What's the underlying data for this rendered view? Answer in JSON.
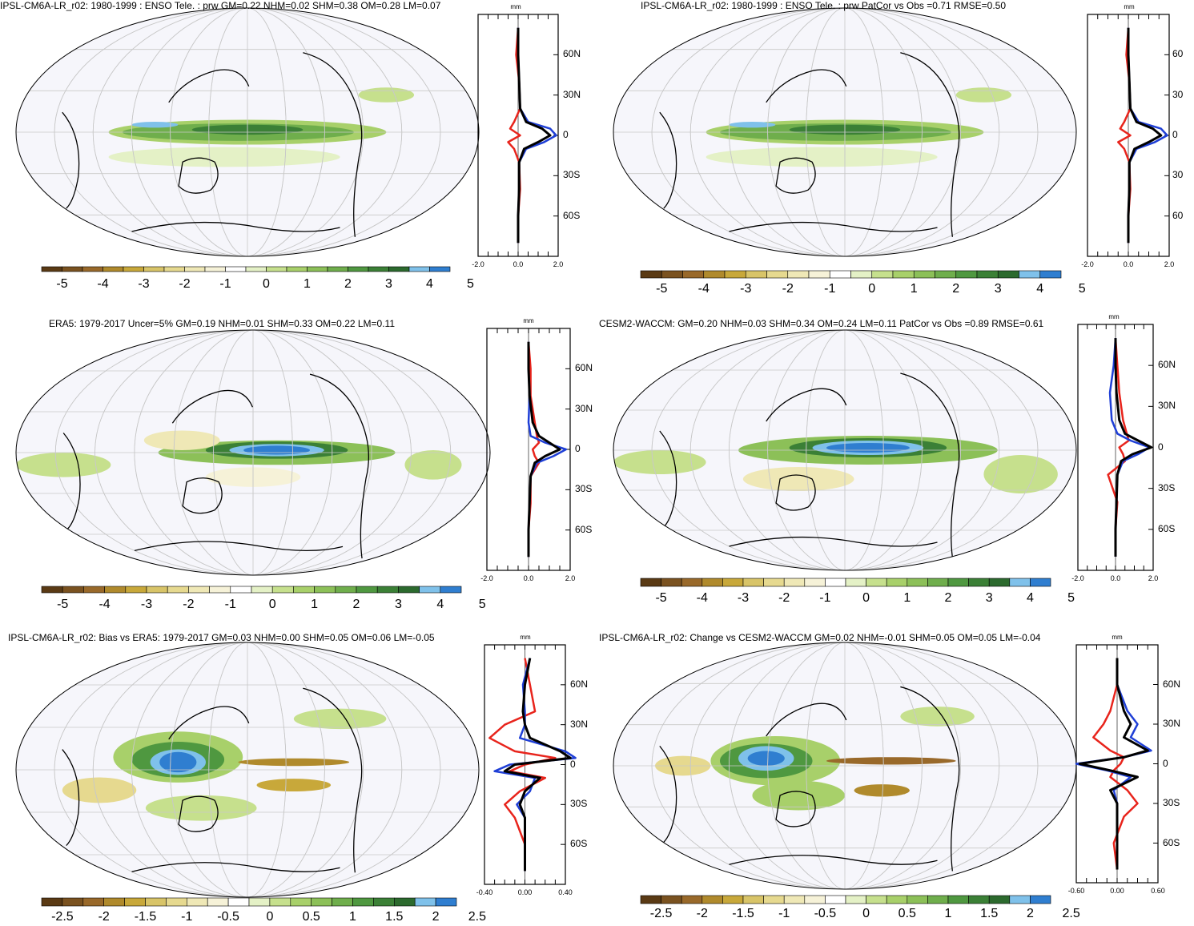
{
  "colors": {
    "ocean": "#f6f6fb",
    "grid": "#c8c8c8",
    "obs_line": "#1f3fd6",
    "model_line": "#e8241c",
    "mean_line": "#000000",
    "colorbar": [
      "#5a3a14",
      "#7a5220",
      "#99692a",
      "#b08a2c",
      "#c8a83a",
      "#d8c468",
      "#e6d98f",
      "#efe8b6",
      "#f6f2d8",
      "#ffffff",
      "#e4f1c6",
      "#c6e08d",
      "#a8d06a",
      "#8cc058",
      "#6fae4c",
      "#4f9840",
      "#3b8036",
      "#2c6a2e",
      "#7fc1ea",
      "#2f7ed0"
    ]
  },
  "panels": [
    {
      "id": "ipsl-enso",
      "title": "IPSL-CM6A-LR_r02: 1980-1999 : ENSO Tele. : prw GM=0.22 NHM=0.02 SHM=0.38 OM=0.28 LM=0.07",
      "cbar_labels": [
        "-5",
        "-4",
        "-3",
        "-2",
        "-1",
        "0",
        "1",
        "2",
        "3",
        "4",
        "5"
      ],
      "lat_labels": [
        "60N",
        "30N",
        "0",
        "30S",
        "60S"
      ],
      "x_labels": [
        "-2.0",
        "0.0",
        "2.0"
      ],
      "unit": "mm"
    },
    {
      "id": "ipsl-enso-patcor",
      "title": "IPSL-CM6A-LR_r02: 1980-1999 : ENSO Tele. : prw PatCor vs Obs =0.71 RMSE=0.50",
      "cbar_labels": [
        "-5",
        "-4",
        "-3",
        "-2",
        "-1",
        "0",
        "1",
        "2",
        "3",
        "4",
        "5"
      ],
      "lat_labels": [
        "60",
        "30",
        "0",
        "30",
        "60"
      ],
      "x_labels": [
        "-2.0",
        "0.0",
        "2.0"
      ],
      "unit": "mm"
    },
    {
      "id": "era5",
      "title": "ERA5: 1979-2017 Uncer=5% GM=0.19 NHM=0.01 SHM=0.33 OM=0.22 LM=0.11",
      "cbar_labels": [
        "-5",
        "-4",
        "-3",
        "-2",
        "-1",
        "0",
        "1",
        "2",
        "3",
        "4",
        "5"
      ],
      "lat_labels": [
        "60N",
        "30N",
        "0",
        "30S",
        "60S"
      ],
      "x_labels": [
        "-2.0",
        "0.0",
        "2.0"
      ],
      "unit": "mm"
    },
    {
      "id": "cesm2",
      "title": "CESM2-WACCM: GM=0.20 NHM=0.03 SHM=0.34 OM=0.24 LM=0.11 PatCor vs Obs =0.89 RMSE=0.61",
      "cbar_labels": [
        "-5",
        "-4",
        "-3",
        "-2",
        "-1",
        "0",
        "1",
        "2",
        "3",
        "4",
        "5"
      ],
      "lat_labels": [
        "60N",
        "30N",
        "0",
        "30S",
        "60S"
      ],
      "x_labels": [
        "-2.0",
        "0.0",
        "2.0"
      ],
      "unit": "mm"
    },
    {
      "id": "bias-era5",
      "title": "IPSL-CM6A-LR_r02: Bias vs ERA5: 1979-2017 GM=0.03 NHM=0.00 SHM=0.05 OM=0.06 LM=-0.05",
      "cbar_labels": [
        "-2.5",
        "-2",
        "-1.5",
        "-1",
        "-0.5",
        "0",
        "0.5",
        "1",
        "1.5",
        "2",
        "2.5"
      ],
      "lat_labels": [
        "60N",
        "30N",
        "0",
        "30S",
        "60S"
      ],
      "x_labels": [
        "-0.40",
        "0.00",
        "0.40"
      ],
      "unit": "mm"
    },
    {
      "id": "change-cesm2",
      "title": "IPSL-CM6A-LR_r02: Change vs CESM2-WACCM GM=0.02 NHM=-0.01 SHM=0.05 OM=0.05 LM=-0.04",
      "cbar_labels": [
        "-2.5",
        "-2",
        "-1.5",
        "-1",
        "-0.5",
        "0",
        "0.5",
        "1",
        "1.5",
        "2",
        "2.5"
      ],
      "lat_labels": [
        "60N",
        "30N",
        "0",
        "30S",
        "60S"
      ],
      "x_labels": [
        "-0.60",
        "0.00",
        "0.60"
      ],
      "unit": "mm"
    }
  ],
  "chart_data": [
    {
      "type": "heatmap",
      "title": "IPSL-CM6A-LR_r02: 1980-1999 : ENSO Tele. : prw GM=0.22 NHM=0.02 SHM=0.38 OM=0.28 LM=0.07",
      "colorbar_range": [
        -5,
        5
      ],
      "zonal_mean": {
        "lat": [
          80,
          60,
          40,
          20,
          10,
          5,
          0,
          -5,
          -10,
          -20,
          -40,
          -60,
          -80
        ],
        "series": [
          {
            "color": "black",
            "values": [
              0.0,
              0.0,
              0.05,
              0.1,
              0.4,
              1.2,
              1.6,
              1.0,
              0.3,
              0.05,
              0.05,
              0.0,
              0.0
            ]
          },
          {
            "color": "blue",
            "values": [
              0.0,
              0.0,
              0.05,
              0.1,
              0.5,
              1.6,
              1.9,
              1.3,
              0.4,
              0.05,
              0.05,
              0.0,
              0.0
            ]
          },
          {
            "color": "red",
            "values": [
              0.0,
              -0.1,
              0.05,
              0.1,
              -0.2,
              -0.4,
              0.1,
              -0.5,
              -0.2,
              0.05,
              0.1,
              0.0,
              0.0
            ]
          }
        ],
        "xlim": [
          -2,
          2
        ]
      }
    },
    {
      "type": "heatmap",
      "title": "IPSL-CM6A-LR_r02: 1980-1999 : ENSO Tele. : prw PatCor vs Obs =0.71 RMSE=0.50",
      "colorbar_range": [
        -5,
        5
      ],
      "zonal_mean": {
        "lat": [
          80,
          60,
          40,
          20,
          10,
          5,
          0,
          -5,
          -10,
          -20,
          -40,
          -60,
          -80
        ],
        "series": [
          {
            "color": "black",
            "values": [
              0.0,
              0.0,
              0.05,
              0.1,
              0.4,
              1.2,
              1.6,
              1.0,
              0.3,
              0.05,
              0.05,
              0.0,
              0.0
            ]
          },
          {
            "color": "blue",
            "values": [
              0.0,
              0.0,
              0.05,
              0.1,
              0.5,
              1.6,
              1.9,
              1.3,
              0.4,
              0.05,
              0.05,
              0.0,
              0.0
            ]
          },
          {
            "color": "red",
            "values": [
              0.0,
              -0.1,
              0.05,
              0.1,
              -0.2,
              -0.4,
              0.1,
              -0.5,
              -0.2,
              0.05,
              0.1,
              0.0,
              0.0
            ]
          }
        ],
        "xlim": [
          -2,
          2
        ]
      }
    },
    {
      "type": "heatmap",
      "title": "ERA5: 1979-2017 Uncer=5% GM=0.19 NHM=0.01 SHM=0.33 OM=0.22 LM=0.11",
      "colorbar_range": [
        -5,
        5
      ],
      "zonal_mean": {
        "lat": [
          80,
          60,
          40,
          20,
          10,
          5,
          0,
          -5,
          -10,
          -20,
          -40,
          -60,
          -80
        ],
        "series": [
          {
            "color": "black",
            "values": [
              0.0,
              0.0,
              0.05,
              0.2,
              0.5,
              1.0,
              1.5,
              0.8,
              0.3,
              0.1,
              0.05,
              0.0,
              0.0
            ]
          },
          {
            "color": "blue",
            "values": [
              0.0,
              0.0,
              0.05,
              0.0,
              0.1,
              0.8,
              1.8,
              1.2,
              0.4,
              0.1,
              0.05,
              0.0,
              0.0
            ]
          },
          {
            "color": "red",
            "values": [
              0.0,
              0.1,
              0.1,
              0.3,
              0.4,
              0.5,
              0.2,
              0.3,
              0.5,
              0.1,
              0.1,
              0.0,
              0.0
            ]
          }
        ],
        "xlim": [
          -2,
          2
        ]
      }
    },
    {
      "type": "heatmap",
      "title": "CESM2-WACCM: GM=0.20 NHM=0.03 SHM=0.34 OM=0.24 LM=0.11 PatCor vs Obs =0.89 RMSE=0.61",
      "colorbar_range": [
        -5,
        5
      ],
      "zonal_mean": {
        "lat": [
          80,
          60,
          40,
          20,
          10,
          5,
          0,
          -5,
          -10,
          -20,
          -40,
          -60,
          -80
        ],
        "series": [
          {
            "color": "black",
            "values": [
              0.0,
              0.0,
              0.05,
              0.2,
              0.5,
              1.2,
              1.9,
              0.9,
              0.3,
              0.1,
              0.05,
              0.0,
              0.0
            ]
          },
          {
            "color": "blue",
            "values": [
              0.0,
              -0.1,
              -0.3,
              -0.2,
              0.1,
              0.8,
              1.8,
              1.2,
              0.4,
              0.1,
              0.05,
              0.0,
              0.0
            ]
          },
          {
            "color": "red",
            "values": [
              0.0,
              0.1,
              0.2,
              0.4,
              0.6,
              0.7,
              0.2,
              0.4,
              0.5,
              -0.4,
              0.1,
              0.0,
              0.0
            ]
          }
        ],
        "xlim": [
          -2,
          2
        ]
      }
    },
    {
      "type": "heatmap",
      "title": "IPSL-CM6A-LR_r02: Bias vs ERA5: 1979-2017 GM=0.03 NHM=0.00 SHM=0.05 OM=0.06 LM=-0.05",
      "colorbar_range": [
        -2.5,
        2.5
      ],
      "zonal_mean": {
        "lat": [
          80,
          60,
          40,
          30,
          20,
          10,
          5,
          0,
          -5,
          -10,
          -20,
          -30,
          -40,
          -60,
          -80
        ],
        "series": [
          {
            "color": "black",
            "values": [
              0.05,
              0.0,
              -0.02,
              0.0,
              0.05,
              0.35,
              0.45,
              -0.1,
              -0.2,
              0.15,
              0.0,
              -0.05,
              0.0,
              0.0,
              0.0
            ]
          },
          {
            "color": "blue",
            "values": [
              0.05,
              -0.02,
              0.0,
              0.0,
              -0.05,
              0.4,
              0.5,
              -0.15,
              -0.3,
              0.1,
              0.05,
              -0.08,
              0.0,
              0.0,
              0.0
            ]
          },
          {
            "color": "red",
            "values": [
              0.0,
              0.05,
              0.1,
              -0.2,
              -0.35,
              -0.1,
              0.3,
              0.0,
              -0.15,
              0.2,
              -0.05,
              -0.2,
              -0.1,
              0.0,
              0.0
            ]
          }
        ],
        "xlim": [
          -0.4,
          0.4
        ]
      }
    },
    {
      "type": "heatmap",
      "title": "IPSL-CM6A-LR_r02: Change vs CESM2-WACCM GM=0.02 NHM=-0.01 SHM=0.05 OM=0.05 LM=-0.04",
      "colorbar_range": [
        -2.5,
        2.5
      ],
      "zonal_mean": {
        "lat": [
          80,
          60,
          40,
          30,
          20,
          10,
          5,
          0,
          -5,
          -10,
          -20,
          -30,
          -40,
          -60,
          -80
        ],
        "series": [
          {
            "color": "black",
            "values": [
              0.0,
              0.0,
              0.1,
              0.2,
              0.1,
              0.45,
              0.1,
              -0.55,
              -0.1,
              0.3,
              -0.1,
              0.0,
              0.0,
              0.0,
              0.0
            ]
          },
          {
            "color": "blue",
            "values": [
              0.0,
              0.0,
              0.15,
              0.3,
              0.2,
              0.5,
              0.1,
              -0.6,
              -0.15,
              0.2,
              -0.05,
              0.0,
              0.0,
              0.0,
              0.0
            ]
          },
          {
            "color": "red",
            "values": [
              0.0,
              0.0,
              -0.1,
              -0.2,
              -0.35,
              -0.1,
              0.1,
              0.05,
              -0.05,
              -0.1,
              0.15,
              0.3,
              0.1,
              -0.05,
              0.0
            ]
          }
        ],
        "xlim": [
          -0.6,
          0.6
        ]
      }
    }
  ]
}
